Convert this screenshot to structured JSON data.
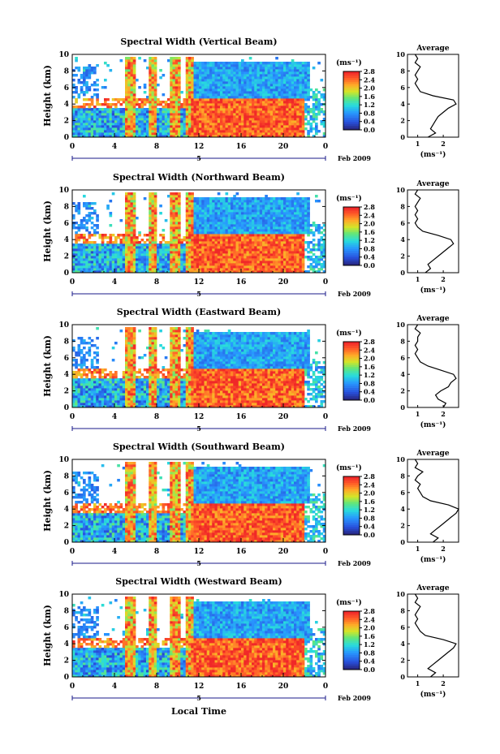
{
  "figure": {
    "xlabel": "Local Time",
    "date_label": "Feb 2009",
    "day_label": "5"
  },
  "chart_data": [
    {
      "type": "heatmap",
      "title": "Spectral Width (Vertical Beam)",
      "ylabel": "Height (km)",
      "ylim": [
        0,
        10
      ],
      "yticks": [
        "0",
        "2",
        "4",
        "6",
        "8",
        "10"
      ],
      "xlim": [
        0,
        24
      ],
      "xticks": [
        "0",
        "4",
        "8",
        "12",
        "16",
        "20",
        "0"
      ],
      "colorbar": {
        "unit": "(ms⁻¹)",
        "range": [
          0,
          2.8
        ],
        "ticks": [
          "0.0",
          "0.4",
          "0.8",
          "1.2",
          "1.6",
          "2.0",
          "2.4",
          "2.8"
        ]
      },
      "profile": {
        "title": "Average",
        "xlabel": "(ms⁻¹)",
        "xlim": [
          0.6,
          2.6
        ],
        "xticks": [
          "1",
          "2"
        ],
        "ylim": [
          0,
          10
        ],
        "yticks": [
          "0",
          "2",
          "4",
          "6",
          "8",
          "10"
        ],
        "points": [
          [
            1.4,
            0.0
          ],
          [
            1.7,
            0.5
          ],
          [
            1.5,
            1.0
          ],
          [
            1.6,
            1.5
          ],
          [
            1.7,
            2.0
          ],
          [
            1.8,
            2.5
          ],
          [
            2.0,
            3.0
          ],
          [
            2.2,
            3.5
          ],
          [
            2.5,
            4.0
          ],
          [
            2.4,
            4.5
          ],
          [
            1.6,
            5.0
          ],
          [
            1.1,
            5.5
          ],
          [
            1.0,
            6.0
          ],
          [
            0.9,
            6.5
          ],
          [
            1.0,
            7.0
          ],
          [
            0.9,
            7.5
          ],
          [
            1.0,
            8.0
          ],
          [
            1.1,
            8.5
          ],
          [
            0.9,
            9.0
          ],
          [
            1.0,
            9.5
          ],
          [
            0.9,
            10.0
          ]
        ]
      }
    },
    {
      "type": "heatmap",
      "title": "Spectral Width (Northward Beam)",
      "ylabel": "Height (km)",
      "ylim": [
        0,
        10
      ],
      "yticks": [
        "0",
        "2",
        "4",
        "6",
        "8",
        "10"
      ],
      "xlim": [
        0,
        24
      ],
      "xticks": [
        "0",
        "4",
        "8",
        "12",
        "16",
        "20",
        "0"
      ],
      "colorbar": {
        "unit": "(ms⁻¹)",
        "range": [
          0,
          2.8
        ],
        "ticks": [
          "0.0",
          "0.4",
          "0.8",
          "1.2",
          "1.6",
          "2.0",
          "2.4",
          "2.8"
        ]
      },
      "profile": {
        "title": "Average",
        "xlabel": "(ms⁻¹)",
        "xlim": [
          0.6,
          2.6
        ],
        "xticks": [
          "1",
          "2"
        ],
        "ylim": [
          0,
          10
        ],
        "yticks": [
          "0",
          "2",
          "4",
          "6",
          "8",
          "10"
        ],
        "points": [
          [
            1.3,
            0.0
          ],
          [
            1.5,
            0.5
          ],
          [
            1.4,
            1.0
          ],
          [
            1.6,
            1.5
          ],
          [
            1.8,
            2.0
          ],
          [
            2.0,
            2.5
          ],
          [
            2.2,
            3.0
          ],
          [
            2.4,
            3.5
          ],
          [
            2.3,
            4.0
          ],
          [
            1.8,
            4.5
          ],
          [
            1.2,
            5.0
          ],
          [
            1.0,
            5.5
          ],
          [
            0.9,
            6.0
          ],
          [
            1.0,
            6.5
          ],
          [
            0.9,
            7.0
          ],
          [
            1.0,
            7.5
          ],
          [
            0.9,
            8.0
          ],
          [
            1.0,
            8.5
          ],
          [
            1.1,
            9.0
          ],
          [
            0.9,
            9.5
          ],
          [
            1.0,
            10.0
          ]
        ]
      }
    },
    {
      "type": "heatmap",
      "title": "Spectral Width (Eastward Beam)",
      "ylabel": "Height (km)",
      "ylim": [
        0,
        10
      ],
      "yticks": [
        "0",
        "2",
        "4",
        "6",
        "8",
        "10"
      ],
      "xlim": [
        0,
        24
      ],
      "xticks": [
        "0",
        "4",
        "8",
        "12",
        "16",
        "20",
        "0"
      ],
      "colorbar": {
        "unit": "(ms⁻¹)",
        "range": [
          0,
          2.8
        ],
        "ticks": [
          "0.0",
          "0.4",
          "0.8",
          "1.2",
          "1.6",
          "2.0",
          "2.4",
          "2.8"
        ]
      },
      "profile": {
        "title": "Average",
        "xlabel": "(ms⁻¹)",
        "xlim": [
          0.6,
          2.6
        ],
        "xticks": [
          "1",
          "2"
        ],
        "ylim": [
          0,
          10
        ],
        "yticks": [
          "0",
          "2",
          "4",
          "6",
          "8",
          "10"
        ],
        "points": [
          [
            2.0,
            0.0
          ],
          [
            2.1,
            0.5
          ],
          [
            1.8,
            1.0
          ],
          [
            1.7,
            1.5
          ],
          [
            1.9,
            2.0
          ],
          [
            2.2,
            2.5
          ],
          [
            2.3,
            3.0
          ],
          [
            2.5,
            3.5
          ],
          [
            2.4,
            4.0
          ],
          [
            1.9,
            4.5
          ],
          [
            1.4,
            5.0
          ],
          [
            1.1,
            5.5
          ],
          [
            1.0,
            6.0
          ],
          [
            0.9,
            6.5
          ],
          [
            1.0,
            7.0
          ],
          [
            0.9,
            7.5
          ],
          [
            1.0,
            8.0
          ],
          [
            1.0,
            8.5
          ],
          [
            1.1,
            9.0
          ],
          [
            0.9,
            9.5
          ],
          [
            1.0,
            10.0
          ]
        ]
      }
    },
    {
      "type": "heatmap",
      "title": "Spectral Width (Southward Beam)",
      "ylabel": "Height (km)",
      "ylim": [
        0,
        10
      ],
      "yticks": [
        "0",
        "2",
        "4",
        "6",
        "8",
        "10"
      ],
      "xlim": [
        0,
        24
      ],
      "xticks": [
        "0",
        "4",
        "8",
        "12",
        "16",
        "20",
        "0"
      ],
      "colorbar": {
        "unit": "(ms⁻¹)",
        "range": [
          0,
          2.8
        ],
        "ticks": [
          "0.0",
          "0.4",
          "0.8",
          "1.2",
          "1.6",
          "2.0",
          "2.4",
          "2.8"
        ]
      },
      "profile": {
        "title": "Average",
        "xlabel": "(ms⁻¹)",
        "xlim": [
          0.6,
          2.6
        ],
        "xticks": [
          "1",
          "2"
        ],
        "ylim": [
          0,
          10
        ],
        "yticks": [
          "0",
          "2",
          "4",
          "6",
          "8",
          "10"
        ],
        "points": [
          [
            1.6,
            0.0
          ],
          [
            1.8,
            0.5
          ],
          [
            1.5,
            1.0
          ],
          [
            1.7,
            1.5
          ],
          [
            1.9,
            2.0
          ],
          [
            2.1,
            2.5
          ],
          [
            2.3,
            3.0
          ],
          [
            2.5,
            3.5
          ],
          [
            2.6,
            4.0
          ],
          [
            2.2,
            4.5
          ],
          [
            1.5,
            5.0
          ],
          [
            1.2,
            5.5
          ],
          [
            1.1,
            6.0
          ],
          [
            1.0,
            6.5
          ],
          [
            1.1,
            7.0
          ],
          [
            0.9,
            7.5
          ],
          [
            1.0,
            8.0
          ],
          [
            1.2,
            8.5
          ],
          [
            0.9,
            9.0
          ],
          [
            1.0,
            9.5
          ],
          [
            0.9,
            10.0
          ]
        ]
      }
    },
    {
      "type": "heatmap",
      "title": "Spectral Width (Westward Beam)",
      "ylabel": "Height (km)",
      "ylim": [
        0,
        10
      ],
      "yticks": [
        "0",
        "2",
        "4",
        "6",
        "8",
        "10"
      ],
      "xlim": [
        0,
        24
      ],
      "xticks": [
        "0",
        "4",
        "8",
        "12",
        "16",
        "20",
        "0"
      ],
      "colorbar": {
        "unit": "(ms⁻¹)",
        "range": [
          0,
          2.8
        ],
        "ticks": [
          "0.0",
          "0.4",
          "0.8",
          "1.2",
          "1.6",
          "2.0",
          "2.4",
          "2.8"
        ]
      },
      "profile": {
        "title": "Average",
        "xlabel": "(ms⁻¹)",
        "xlim": [
          0.6,
          2.6
        ],
        "xticks": [
          "1",
          "2"
        ],
        "ylim": [
          0,
          10
        ],
        "yticks": [
          "0",
          "2",
          "4",
          "6",
          "8",
          "10"
        ],
        "points": [
          [
            1.5,
            0.0
          ],
          [
            1.7,
            0.5
          ],
          [
            1.4,
            1.0
          ],
          [
            1.6,
            1.5
          ],
          [
            1.8,
            2.0
          ],
          [
            2.0,
            2.5
          ],
          [
            2.2,
            3.0
          ],
          [
            2.4,
            3.5
          ],
          [
            2.5,
            4.0
          ],
          [
            2.0,
            4.5
          ],
          [
            1.3,
            5.0
          ],
          [
            1.1,
            5.5
          ],
          [
            1.0,
            6.0
          ],
          [
            0.9,
            6.5
          ],
          [
            1.0,
            7.0
          ],
          [
            0.9,
            7.5
          ],
          [
            1.0,
            8.0
          ],
          [
            1.1,
            8.5
          ],
          [
            0.9,
            9.0
          ],
          [
            1.0,
            9.5
          ],
          [
            0.9,
            10.0
          ]
        ]
      }
    }
  ]
}
